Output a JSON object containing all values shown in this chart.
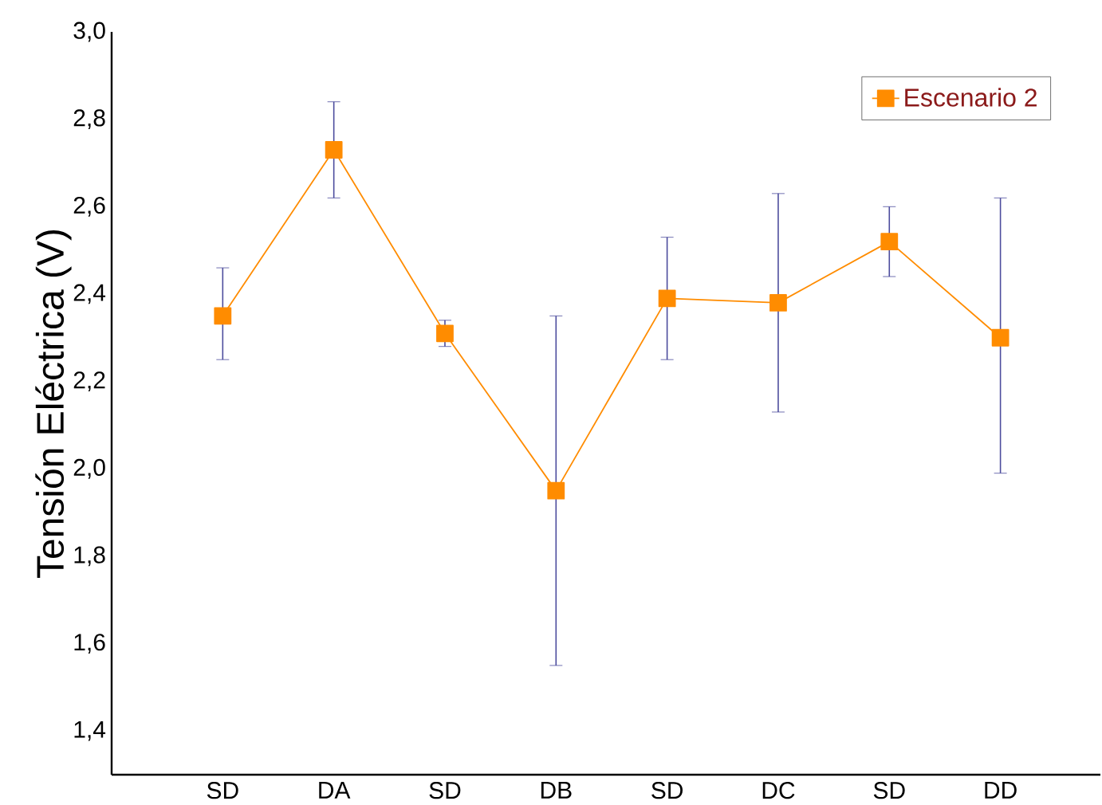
{
  "chart_data": {
    "type": "line",
    "ylabel": "Tensión Eléctrica (V)",
    "categories": [
      "SD",
      "DA",
      "SD",
      "DB",
      "SD",
      "DC",
      "SD",
      "DD"
    ],
    "series": [
      {
        "name": "Escenario 2",
        "color": "#ff8c00",
        "values": [
          2.35,
          2.73,
          2.31,
          1.95,
          2.39,
          2.38,
          2.52,
          2.3
        ],
        "errors": [
          [
            2.25,
            2.46
          ],
          [
            2.62,
            2.84
          ],
          [
            2.28,
            2.34
          ],
          [
            1.55,
            2.35
          ],
          [
            2.25,
            2.53
          ],
          [
            2.13,
            2.63
          ],
          [
            2.44,
            2.6
          ],
          [
            1.99,
            2.62
          ]
        ]
      }
    ],
    "ylim": [
      1.3,
      3.0
    ],
    "yticks": [
      {
        "value": 1.4,
        "label": "1,4"
      },
      {
        "value": 1.6,
        "label": "1,6"
      },
      {
        "value": 1.8,
        "label": "1,8"
      },
      {
        "value": 2.0,
        "label": "2,0"
      },
      {
        "value": 2.2,
        "label": "2,2"
      },
      {
        "value": 2.4,
        "label": "2,4"
      },
      {
        "value": 2.6,
        "label": "2,6"
      },
      {
        "value": 2.8,
        "label": "2,8"
      },
      {
        "value": 3.0,
        "label": "3,0"
      }
    ],
    "legend": "top right",
    "marker": "square",
    "line_style": "solid",
    "grid": false
  }
}
